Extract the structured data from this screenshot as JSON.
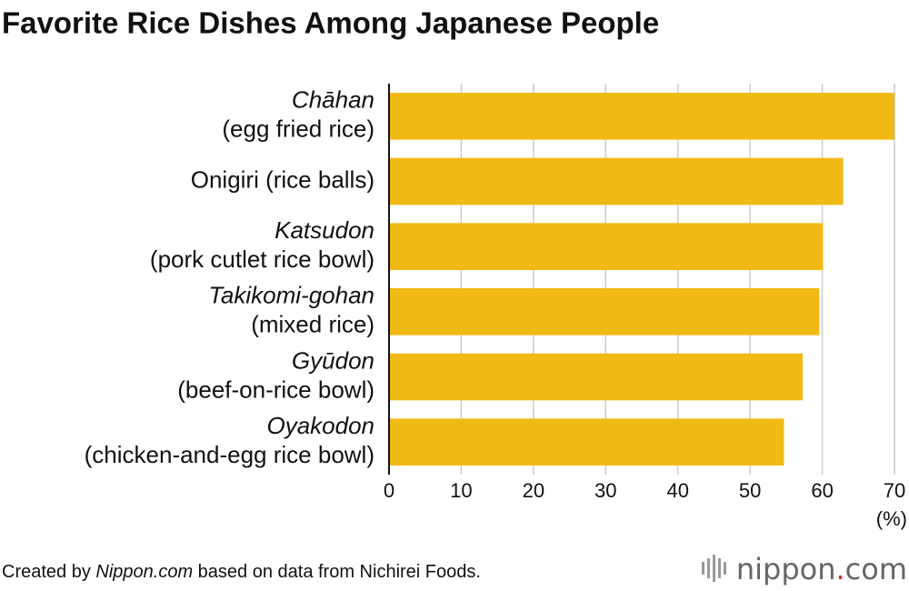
{
  "chart_data": {
    "type": "bar",
    "orientation": "horizontal",
    "title": "Favorite Rice Dishes Among Japanese People",
    "categories": [
      [
        "Chāhan",
        "(egg fried rice)"
      ],
      [
        "Onigiri (rice balls)"
      ],
      [
        "Katsudon",
        "(pork cutlet rice bowl)"
      ],
      [
        "Takikomi-gohan",
        "(mixed rice)"
      ],
      [
        "Gyūdon",
        "(beef-on-rice bowl)"
      ],
      [
        "Oyakodon",
        "(chicken-and-egg rice bowl)"
      ]
    ],
    "values": [
      70,
      62.9,
      60.1,
      59.6,
      57.3,
      54.7
    ],
    "color": "#f0b914",
    "xlim": [
      0,
      70
    ],
    "xticks": [
      0,
      10,
      20,
      30,
      40,
      50,
      60,
      70
    ],
    "x_unit": "(%)",
    "grid": true,
    "source": [
      "Created by ",
      "Nippon.com",
      " based on data from Nichirei Foods."
    ],
    "logo": [
      "nippon",
      ".",
      "com"
    ]
  }
}
